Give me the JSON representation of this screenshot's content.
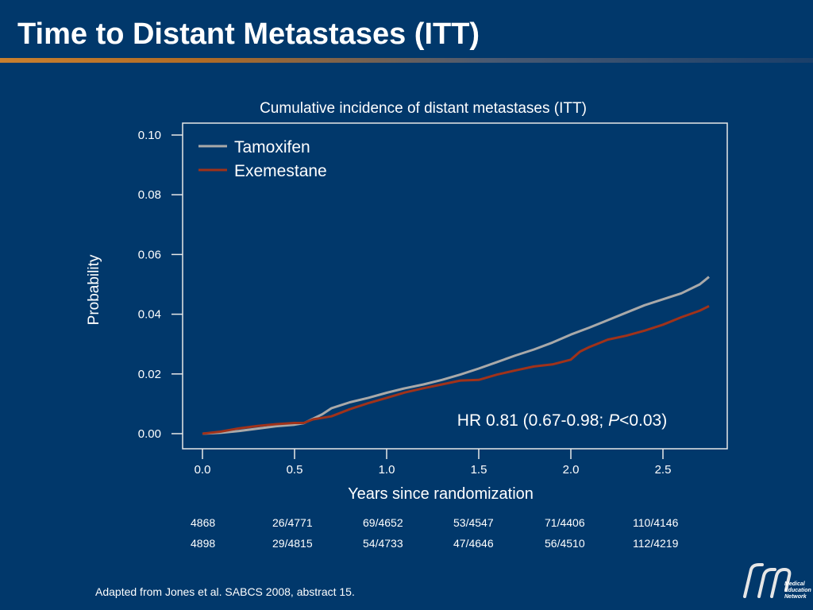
{
  "slide": {
    "title": "Time to Distant Metastases (ITT)",
    "footnote": "Adapted from Jones et al. SABCS 2008, abstract 15.",
    "logo_text": [
      "Medical",
      "Education",
      "Network"
    ]
  },
  "colors": {
    "background": "#01386b",
    "tamoxifen": "#a9a9a9",
    "exemestane": "#a0321a",
    "accent_rule": "#c9802f"
  },
  "chart_data": {
    "type": "line",
    "title": "Cumulative incidence of distant metastases (ITT)",
    "xlabel": "Years since randomization",
    "ylabel": "Probability",
    "xlim": [
      0,
      2.8
    ],
    "ylim": [
      0,
      0.1
    ],
    "xticks": [
      "0.0",
      "0.5",
      "1.0",
      "1.5",
      "2.0",
      "2.5"
    ],
    "yticks": [
      "0.00",
      "0.02",
      "0.04",
      "0.06",
      "0.08",
      "0.10"
    ],
    "legend_position": "top-left",
    "annotation": {
      "prefix": "HR 0.81 (0.67-0.98; ",
      "italic": "P",
      "suffix": "<0.03)"
    },
    "series": [
      {
        "name": "Tamoxifen",
        "color": "#a9a9a9",
        "x": [
          0.0,
          0.1,
          0.2,
          0.3,
          0.4,
          0.5,
          0.55,
          0.6,
          0.65,
          0.7,
          0.8,
          0.9,
          1.0,
          1.1,
          1.2,
          1.3,
          1.4,
          1.5,
          1.6,
          1.7,
          1.8,
          1.9,
          2.0,
          2.1,
          2.2,
          2.3,
          2.4,
          2.5,
          2.6,
          2.7,
          2.75
        ],
        "y": [
          0.0,
          0.0003,
          0.0009,
          0.0017,
          0.0025,
          0.003,
          0.0035,
          0.005,
          0.0065,
          0.0085,
          0.0105,
          0.012,
          0.0137,
          0.0152,
          0.0165,
          0.018,
          0.0198,
          0.0218,
          0.024,
          0.0262,
          0.0282,
          0.0305,
          0.0332,
          0.0355,
          0.038,
          0.0405,
          0.043,
          0.045,
          0.047,
          0.05,
          0.0525
        ]
      },
      {
        "name": "Exemestane",
        "color": "#a0321a",
        "x": [
          0.0,
          0.1,
          0.2,
          0.3,
          0.4,
          0.5,
          0.55,
          0.6,
          0.7,
          0.8,
          0.9,
          1.0,
          1.1,
          1.2,
          1.3,
          1.4,
          1.5,
          1.6,
          1.7,
          1.8,
          1.9,
          2.0,
          2.05,
          2.1,
          2.2,
          2.3,
          2.4,
          2.5,
          2.6,
          2.7,
          2.75
        ],
        "y": [
          0.0,
          0.0007,
          0.0018,
          0.0026,
          0.0032,
          0.0036,
          0.0036,
          0.0048,
          0.0058,
          0.0082,
          0.0102,
          0.012,
          0.0138,
          0.0152,
          0.0165,
          0.0178,
          0.018,
          0.0198,
          0.0212,
          0.0225,
          0.0232,
          0.0248,
          0.0275,
          0.029,
          0.0315,
          0.0328,
          0.0345,
          0.0365,
          0.039,
          0.0412,
          0.0427
        ]
      }
    ],
    "risk_table": {
      "rows": [
        [
          "4868",
          "26/4771",
          "69/4652",
          "53/4547",
          "71/4406",
          "110/4146"
        ],
        [
          "4898",
          "29/4815",
          "54/4733",
          "47/4646",
          "56/4510",
          "112/4219"
        ]
      ]
    }
  }
}
